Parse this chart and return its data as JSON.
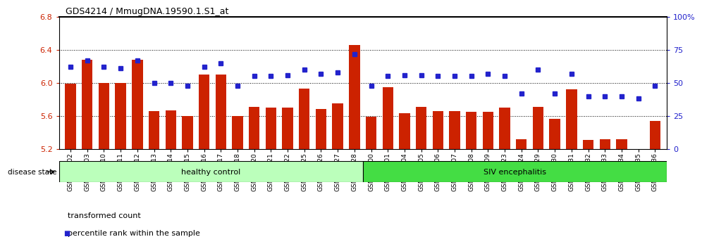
{
  "title": "GDS4214 / MmugDNA.19590.1.S1_at",
  "samples": [
    "GSM347802",
    "GSM347803",
    "GSM347810",
    "GSM347811",
    "GSM347812",
    "GSM347813",
    "GSM347814",
    "GSM347815",
    "GSM347816",
    "GSM347817",
    "GSM347818",
    "GSM347820",
    "GSM347821",
    "GSM347822",
    "GSM347825",
    "GSM347826",
    "GSM347827",
    "GSM347828",
    "GSM347800",
    "GSM347801",
    "GSM347804",
    "GSM347805",
    "GSM347806",
    "GSM347807",
    "GSM347808",
    "GSM347809",
    "GSM347823",
    "GSM347824",
    "GSM347829",
    "GSM347830",
    "GSM347831",
    "GSM347832",
    "GSM347833",
    "GSM347834",
    "GSM347835",
    "GSM347836"
  ],
  "bar_values": [
    5.99,
    6.28,
    6.0,
    6.0,
    6.28,
    5.66,
    5.67,
    5.6,
    6.1,
    6.1,
    5.6,
    5.71,
    5.7,
    5.7,
    5.93,
    5.68,
    5.75,
    6.46,
    5.59,
    5.95,
    5.63,
    5.71,
    5.66,
    5.66,
    5.65,
    5.65,
    5.7,
    5.32,
    5.71,
    5.56,
    5.92,
    5.31,
    5.32,
    5.32,
    5.2,
    5.54
  ],
  "percentile_values": [
    62,
    67,
    62,
    61,
    67,
    50,
    50,
    48,
    62,
    65,
    48,
    55,
    55,
    56,
    60,
    57,
    58,
    72,
    48,
    55,
    56,
    56,
    55,
    55,
    55,
    57,
    55,
    42,
    60,
    42,
    57,
    40,
    40,
    40,
    38,
    48
  ],
  "n_healthy": 18,
  "n_siv": 18,
  "ylim_left": [
    5.2,
    6.8
  ],
  "ylim_right": [
    0,
    100
  ],
  "yticks_left": [
    5.2,
    5.6,
    6.0,
    6.4,
    6.8
  ],
  "yticks_right": [
    0,
    25,
    50,
    75,
    100
  ],
  "ytick_right_labels": [
    "0",
    "25",
    "50",
    "75",
    "100%"
  ],
  "grid_lines": [
    5.6,
    6.0,
    6.4
  ],
  "bar_color": "#cc2200",
  "dot_color": "#2222cc",
  "healthy_color": "#bbffbb",
  "siv_color": "#44dd44",
  "background_color": "#ffffff",
  "legend_bar_label": "transformed count",
  "legend_dot_label": "percentile rank within the sample",
  "disease_state_label": "disease state",
  "healthy_label": "healthy control",
  "siv_label": "SIV encephalitis"
}
